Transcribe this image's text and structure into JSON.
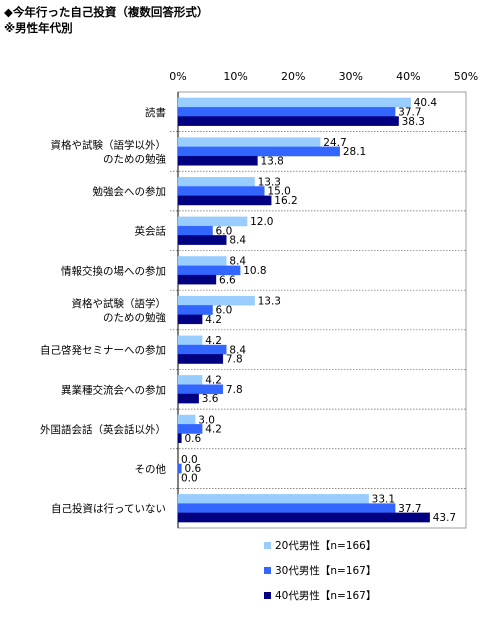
{
  "header": {
    "title": "◆今年行った自己投資（複数回答形式）",
    "subtitle": "※男性年代別"
  },
  "chart_data": {
    "type": "bar",
    "orientation": "horizontal",
    "title": "◆今年行った自己投資（複数回答形式）",
    "subtitle": "※男性年代別",
    "xlim": [
      0,
      50
    ],
    "xticks": [
      "0%",
      "10%",
      "20%",
      "30%",
      "40%",
      "50%"
    ],
    "grid": false,
    "legend_position": "bottom",
    "categories": [
      [
        "読書"
      ],
      [
        "資格や試験（語学以外）",
        "のための勉強"
      ],
      [
        "勉強会への参加"
      ],
      [
        "英会話"
      ],
      [
        "情報交換の場への参加"
      ],
      [
        "資格や試験（語学）",
        "のための勉強"
      ],
      [
        "自己啓発セミナーへの参加"
      ],
      [
        "異業種交流会への参加"
      ],
      [
        "外国語会話（英会話以外）"
      ],
      [
        "その他"
      ],
      [
        "自己投資は行っていない"
      ]
    ],
    "series": [
      {
        "name": "20代男性【n=166】",
        "color": "#99CCFF",
        "values": [
          40.4,
          24.7,
          13.3,
          12.0,
          8.4,
          13.3,
          4.2,
          4.2,
          3.0,
          0.0,
          33.1
        ]
      },
      {
        "name": "30代男性【n=167】",
        "color": "#3366FF",
        "values": [
          37.7,
          28.1,
          15.0,
          6.0,
          10.8,
          6.0,
          8.4,
          7.8,
          4.2,
          0.6,
          37.7
        ]
      },
      {
        "name": "40代男性【n=167】",
        "color": "#000080",
        "values": [
          38.3,
          13.8,
          16.2,
          8.4,
          6.6,
          4.2,
          7.8,
          3.6,
          0.6,
          0.0,
          43.7
        ]
      }
    ]
  }
}
